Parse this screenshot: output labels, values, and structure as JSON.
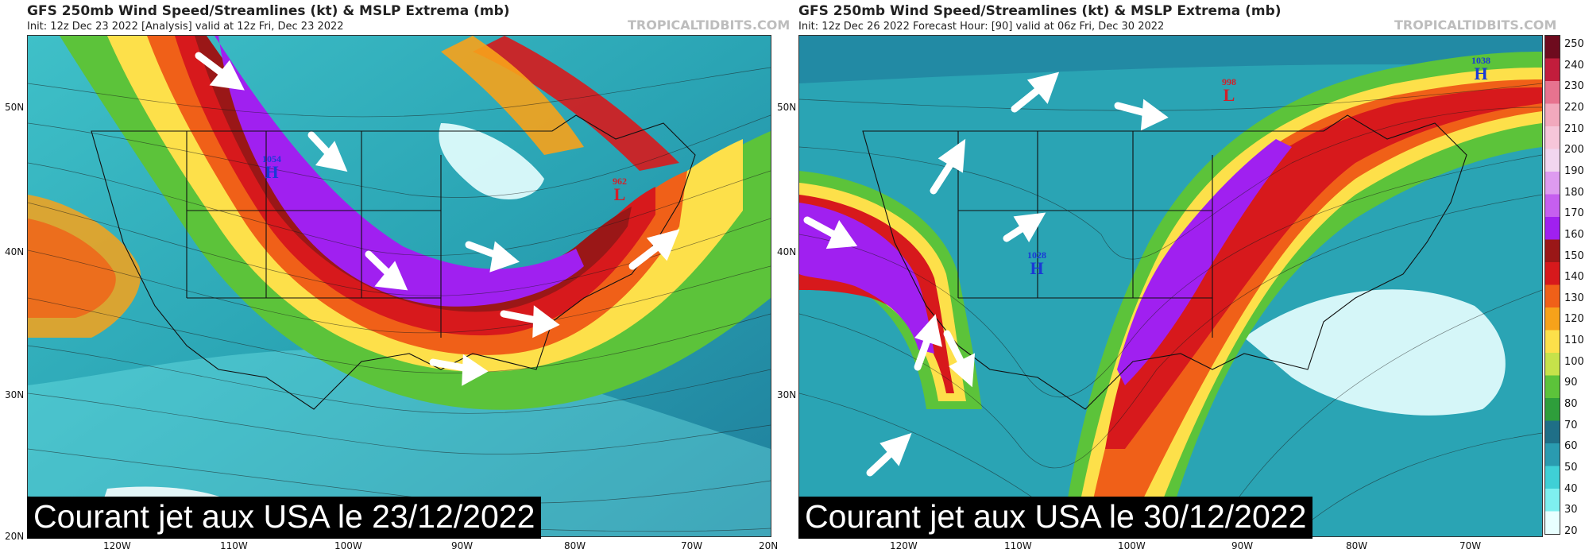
{
  "panels": [
    {
      "title": "GFS 250mb Wind Speed/Streamlines (kt) & MSLP Extrema (mb)",
      "init_line": "Init: 12z Dec 23 2022   [Analysis]   valid at 12z Fri, Dec 23 2022",
      "watermark": "TROPICALTIDBITS.COM",
      "caption": "Courant jet aux USA le 23/12/2022",
      "lat_labels": [
        "50N",
        "40N",
        "30N",
        "20N"
      ],
      "lon_labels": [
        "120W",
        "110W",
        "100W",
        "90W",
        "80W",
        "70W",
        "20N"
      ],
      "pressure_centers": [
        {
          "type": "H",
          "value": "1054",
          "color": "#1a3ad6"
        },
        {
          "type": "L",
          "value": "962",
          "color": "#d0202a"
        }
      ]
    },
    {
      "title": "GFS 250mb Wind Speed/Streamlines (kt) & MSLP Extrema (mb)",
      "init_line": "Init: 12z Dec 26 2022   Forecast Hour: [90]   valid at 06z Fri, Dec 30 2022",
      "watermark": "TROPICALTIDBITS.COM",
      "caption": "Courant jet aux USA le 30/12/2022",
      "lat_labels": [
        "50N",
        "40N",
        "30N",
        "20N"
      ],
      "lon_labels": [
        "120W",
        "110W",
        "100W",
        "90W",
        "80W",
        "70W"
      ],
      "pressure_centers": [
        {
          "type": "H",
          "value": "1028",
          "color": "#1a3ad6"
        },
        {
          "type": "L",
          "value": "998",
          "color": "#d0202a"
        },
        {
          "type": "H",
          "value": "1038",
          "color": "#1a3ad6"
        }
      ]
    }
  ],
  "colorbar": {
    "ticks": [
      "250",
      "240",
      "230",
      "220",
      "210",
      "200",
      "190",
      "180",
      "170",
      "160",
      "150",
      "140",
      "130",
      "120",
      "110",
      "100",
      "90",
      "80",
      "70",
      "60",
      "50",
      "40",
      "30",
      "20"
    ],
    "colors": [
      "#6e0b1e",
      "#c21d3c",
      "#e7738f",
      "#f2a9bd",
      "#f6c6d9",
      "#f1d6ef",
      "#de9bf0",
      "#c65ff0",
      "#a020f0",
      "#9a1717",
      "#d7191c",
      "#f06018",
      "#f7a21a",
      "#fde04a",
      "#c6e24a",
      "#5cc33a",
      "#2e9e3b",
      "#1f6f87",
      "#2a9bb0",
      "#3fd0d6",
      "#7ef0f0",
      "#e8ffff"
    ]
  },
  "icons": [
    "jet-arrow-icon"
  ]
}
